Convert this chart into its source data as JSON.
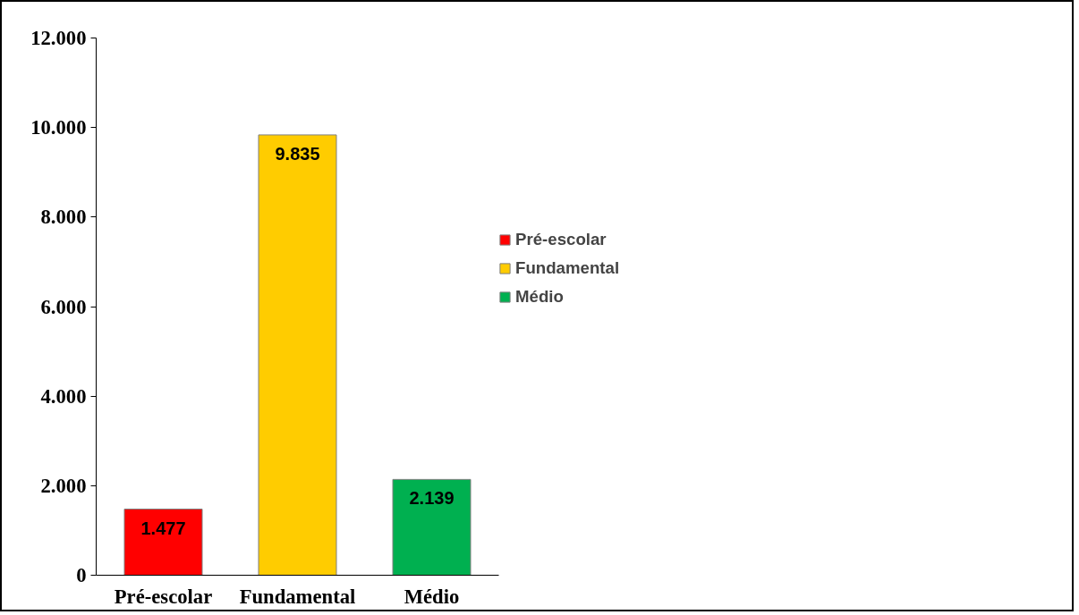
{
  "chart_data": {
    "type": "bar",
    "categories": [
      "Pré-escolar",
      "Fundamental",
      "Médio"
    ],
    "series": [
      {
        "name": "Pré-escolar",
        "color": "#ff0000",
        "values": [
          1477,
          null,
          null
        ],
        "value_labels": [
          "1.477",
          null,
          null
        ]
      },
      {
        "name": "Fundamental",
        "color": "#ffcc00",
        "values": [
          null,
          9835,
          null
        ],
        "value_labels": [
          null,
          "9.835",
          null
        ]
      },
      {
        "name": "Médio",
        "color": "#00b050",
        "values": [
          null,
          null,
          2139
        ],
        "value_labels": [
          null,
          null,
          "2.139"
        ]
      }
    ],
    "ylim": [
      0,
      12000
    ],
    "yticks": [
      0,
      {
        "value": 2000,
        "label": "2.000"
      },
      {
        "value": 4000,
        "label": "4.000"
      },
      {
        "value": 6000,
        "label": "6.000"
      },
      {
        "value": 8000,
        "label": "8.000"
      },
      {
        "value": 10000,
        "label": "10.000"
      },
      {
        "value": 12000,
        "label": "12.000"
      }
    ],
    "grid": false,
    "legend": "right"
  }
}
